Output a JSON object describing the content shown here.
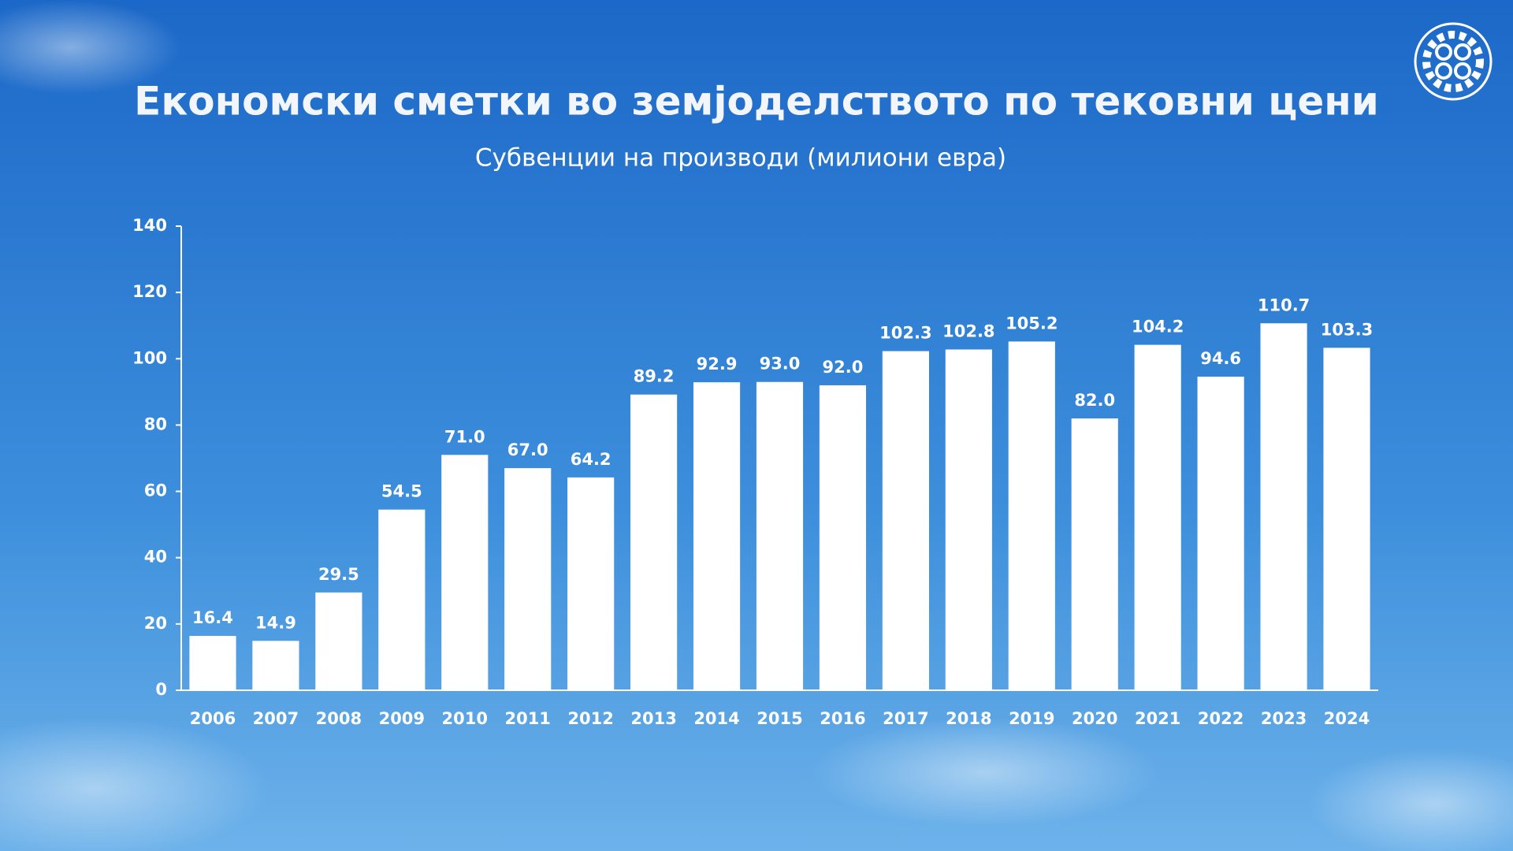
{
  "chart_data": {
    "type": "bar",
    "title": "Економски сметки во земјоделството по тековни цени",
    "subtitle": "Субвенции на производи (милиони евра)",
    "categories": [
      "2006",
      "2007",
      "2008",
      "2009",
      "2010",
      "2011",
      "2012",
      "2013",
      "2014",
      "2015",
      "2016",
      "2017",
      "2018",
      "2019",
      "2020",
      "2021",
      "2022",
      "2023",
      "2024"
    ],
    "values": [
      16.4,
      14.9,
      29.5,
      54.5,
      71.0,
      67.0,
      64.2,
      89.2,
      92.9,
      93.0,
      92.0,
      102.3,
      102.8,
      105.2,
      82.0,
      104.2,
      94.6,
      110.7,
      103.3
    ],
    "value_labels": [
      "16.4",
      "14.9",
      "29.5",
      "54.5",
      "71.0",
      "67.0",
      "64.2",
      "89.2",
      "92.9",
      "93.0",
      "92.0",
      "102.3",
      "102.8",
      "105.2",
      "82.0",
      "104.2",
      "94.6",
      "110.7",
      "103.3"
    ],
    "color": "#ffffff",
    "ylim": [
      0,
      140
    ],
    "yticks": [
      0,
      20,
      40,
      60,
      80,
      100,
      120,
      140
    ],
    "grid": false
  }
}
